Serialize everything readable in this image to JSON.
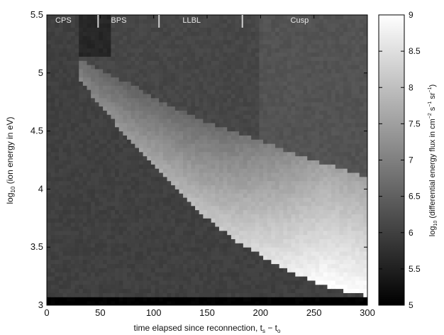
{
  "chart_data": {
    "type": "heatmap",
    "title": "",
    "xlabel": "time elapsed since reconnection, t_s − t_o",
    "xlabel_main": "time elapsed since reconnection, t",
    "xlabel_sub1": "s",
    "xlabel_mid": " − t",
    "xlabel_sub2": "o",
    "ylabel": "log10 (ion energy in eV)",
    "ylabel_pre": "log",
    "ylabel_sub": "10",
    "ylabel_post": " (ion energy in eV)",
    "colorbar_label": "log10 (differential energy flux in cm−2 s−1 sr−1)",
    "colorbar_label_pre": "log",
    "colorbar_label_sub": "10",
    "colorbar_label_main": " (differential energy flux in cm",
    "colorbar_label_exp1": "−2",
    "colorbar_label_s": " s",
    "colorbar_label_exp2": "−1",
    "colorbar_label_sr": " sr",
    "colorbar_label_exp3": "−1",
    "colorbar_label_end": ")",
    "xlim": [
      0,
      300
    ],
    "ylim": [
      3,
      5.5
    ],
    "clim": [
      5,
      9
    ],
    "x_ticks": [
      0,
      50,
      100,
      150,
      200,
      250,
      300
    ],
    "x_tick_labels": [
      "0",
      "50",
      "100",
      "150",
      "200",
      "250",
      "300"
    ],
    "y_ticks": [
      3,
      3.5,
      4,
      4.5,
      5,
      5.5
    ],
    "y_tick_labels": [
      "3",
      "3.5",
      "4",
      "4.5",
      "5",
      "5.5"
    ],
    "colorbar_ticks": [
      5,
      5.5,
      6,
      6.5,
      7,
      7.5,
      8,
      8.5,
      9
    ],
    "colorbar_tick_labels": [
      "5",
      "5.5",
      "6",
      "6.5",
      "7",
      "7.5",
      "8",
      "8.5",
      "9"
    ],
    "colormap": "gray",
    "regions": [
      {
        "label": "CPS",
        "x": 8
      },
      {
        "label": "BPS",
        "x": 60
      },
      {
        "label": "LLBL",
        "x": 127
      },
      {
        "label": "Cusp",
        "x": 228
      }
    ],
    "region_markers": [
      48,
      105,
      183
    ],
    "lower_cutoff_edge": {
      "x": [
        30,
        50,
        75,
        100,
        125,
        150,
        175,
        200,
        225,
        250,
        275,
        300
      ],
      "y": [
        4.95,
        4.72,
        4.45,
        4.22,
        3.98,
        3.75,
        3.57,
        3.43,
        3.3,
        3.2,
        3.13,
        3.08
      ]
    },
    "upper_cutoff_edge": {
      "x": [
        45,
        75,
        100,
        125,
        150,
        175,
        200,
        225,
        250,
        275,
        300
      ],
      "y": [
        5.05,
        4.92,
        4.8,
        4.68,
        4.58,
        4.5,
        4.42,
        4.33,
        4.25,
        4.18,
        4.1
      ]
    },
    "flux_levels": {
      "background": 6.1,
      "upper_right_background": 6.3,
      "below_cutoff": 6.0,
      "bottom_row": 5.0,
      "beam_ridge_peak": 9.0,
      "upper_left_dark": 5.6
    }
  }
}
